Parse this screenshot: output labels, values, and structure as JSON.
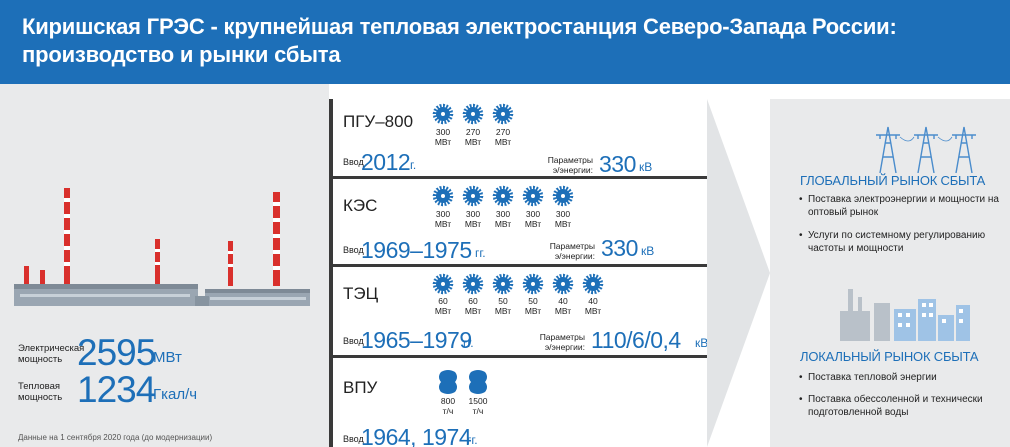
{
  "header": {
    "line1": "Киришская ГРЭС - крупнейшая тепловая электростанция Северо-Запада России:",
    "line2": "производство и рынки сбыта"
  },
  "stats": {
    "electric": {
      "label_1": "Электрическая",
      "label_2": "мощность",
      "value": "2595",
      "unit": "МВт"
    },
    "thermal": {
      "label_1": "Тепловая",
      "label_2": "мощность",
      "value": "1234",
      "unit": "Гкал/ч"
    },
    "note": "Данные на 1 сентября 2020 года (до модернизации)"
  },
  "sections": [
    {
      "title": "ПГУ–800",
      "units": [
        "300",
        "270",
        "270"
      ],
      "unit_label": "МВт",
      "vvod": "Ввод",
      "year": "2012",
      "year_suffix": "г.",
      "param_1": "Параметры",
      "param_2": "э/энергии:",
      "param_value": "330",
      "param_unit": "кВ"
    },
    {
      "title": "КЭС",
      "units": [
        "300",
        "300",
        "300",
        "300",
        "300"
      ],
      "unit_label": "МВт",
      "vvod": "Ввод",
      "year": "1969–1975",
      "year_suffix": "гг.",
      "param_1": "Параметры",
      "param_2": "э/энергии:",
      "param_value": "330",
      "param_unit": "кВ"
    },
    {
      "title": "ТЭЦ",
      "units": [
        "60",
        "60",
        "50",
        "50",
        "40",
        "40"
      ],
      "unit_label": "МВт",
      "vvod": "Ввод",
      "year": "1965–1979",
      "year_suffix": "гг.",
      "param_1": "Параметры",
      "param_2": "э/энергии:",
      "param_value": "110/6/0,4",
      "param_unit": "кВ"
    },
    {
      "title": "ВПУ",
      "units": [
        "800",
        "1500"
      ],
      "unit_label": "т/ч",
      "vvod": "Ввод",
      "year": "1964, 1974",
      "year_suffix": "гг."
    }
  ],
  "markets": {
    "global": {
      "title": "ГЛОБАЛЬНЫЙ РЫНОК СБЫТА",
      "items": [
        "Поставка электроэнергии и мощности на оптовый рынок",
        "Услуги по системному регулированию частоты и мощности"
      ]
    },
    "local": {
      "title": "ЛОКАЛЬНЫЙ РЫНОК СБЫТА",
      "items": [
        "Поставка тепловой энергии",
        "Поставка обессоленной и технически подготовленной воды"
      ]
    }
  },
  "colors": {
    "accent": "#1d6fb8",
    "chimney_red": "#d9302c",
    "building_gray": "#9aa6b2"
  },
  "icons": {
    "turbine": "turbine-icon",
    "water": "water-treatment-icon",
    "pylon": "power-pylon-icon",
    "city": "city-icon",
    "plant": "power-plant-illustration"
  }
}
